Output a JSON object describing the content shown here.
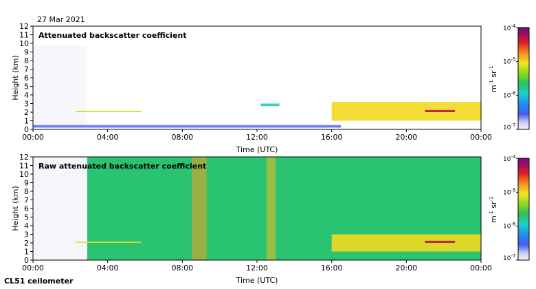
{
  "date_label": "27 Mar 2021",
  "instrument_label": "CL51 ceilometer",
  "panels": [
    {
      "title": "Attenuated backscatter coefficient",
      "colorbar": {
        "unit_m": "m",
        "unit_m_exp": "-1",
        "unit_sr": "sr",
        "unit_sr_exp": "-1",
        "ticks": [
          {
            "base": "10",
            "exp": "-4"
          },
          {
            "base": "10",
            "exp": "-5"
          },
          {
            "base": "10",
            "exp": "-6"
          },
          {
            "base": "10",
            "exp": "-7"
          }
        ]
      }
    },
    {
      "title": "Raw attenuated backscatter coefficient",
      "colorbar": {
        "unit_m": "m",
        "unit_m_exp": "-1",
        "unit_sr": "sr",
        "unit_sr_exp": "-1",
        "ticks": [
          {
            "base": "10",
            "exp": "-4"
          },
          {
            "base": "10",
            "exp": "-5"
          },
          {
            "base": "10",
            "exp": "-6"
          },
          {
            "base": "10",
            "exp": "-7"
          }
        ]
      }
    }
  ],
  "chart_data": [
    {
      "type": "heatmap",
      "title": "Attenuated backscatter coefficient",
      "xlabel": "Time (UTC)",
      "ylabel": "Height (km)",
      "xlim": [
        0,
        24
      ],
      "ylim": [
        0,
        12
      ],
      "x_ticks": [
        0,
        4,
        8,
        12,
        16,
        20,
        24
      ],
      "x_tick_labels": [
        "00:00",
        "04:00",
        "08:00",
        "12:00",
        "16:00",
        "20:00",
        "00:00"
      ],
      "y_ticks": [
        0,
        1,
        2,
        3,
        4,
        5,
        6,
        7,
        8,
        9,
        10,
        11,
        12
      ],
      "y_tick_labels": [
        "0",
        "1",
        "2",
        "3",
        "4",
        "5",
        "6",
        "7",
        "8",
        "9",
        "10",
        "11",
        "12"
      ],
      "colorbar_range": [
        1e-07,
        0.0001
      ],
      "colorbar_scale": "log",
      "features": [
        {
          "kind": "noise",
          "t0": 0.0,
          "t1": 2.9,
          "h0": 0.5,
          "h1": 9.8,
          "log_value": -7.0
        },
        {
          "kind": "layer",
          "t0": 2.3,
          "t1": 5.8,
          "h0": 2.0,
          "h1": 2.15,
          "log_value": -5.2
        },
        {
          "kind": "layer",
          "t0": 0.0,
          "t1": 16.5,
          "h0": 0.2,
          "h1": 0.5,
          "log_value": -6.6
        },
        {
          "kind": "patch",
          "t0": 12.2,
          "t1": 13.2,
          "h0": 2.7,
          "h1": 3.0,
          "log_value": -5.9
        },
        {
          "kind": "cloud",
          "t0": 16.0,
          "t1": 24.0,
          "h0": 1.0,
          "h1": 3.2,
          "log_value": -5.0
        },
        {
          "kind": "layer",
          "t0": 21.0,
          "t1": 22.6,
          "h0": 2.0,
          "h1": 2.25,
          "log_value": -4.3
        }
      ]
    },
    {
      "type": "heatmap",
      "title": "Raw attenuated backscatter coefficient",
      "xlabel": "Time (UTC)",
      "ylabel": "Height (km)",
      "xlim": [
        0,
        24
      ],
      "ylim": [
        0,
        12
      ],
      "x_ticks": [
        0,
        4,
        8,
        12,
        16,
        20,
        24
      ],
      "x_tick_labels": [
        "00:00",
        "04:00",
        "08:00",
        "12:00",
        "16:00",
        "20:00",
        "00:00"
      ],
      "y_ticks": [
        0,
        1,
        2,
        3,
        4,
        5,
        6,
        7,
        8,
        9,
        10,
        11,
        12
      ],
      "y_tick_labels": [
        "0",
        "1",
        "2",
        "3",
        "4",
        "5",
        "6",
        "7",
        "8",
        "9",
        "10",
        "11",
        "12"
      ],
      "colorbar_range": [
        1e-07,
        0.0001
      ],
      "colorbar_scale": "log",
      "features": [
        {
          "kind": "background",
          "t0": 2.9,
          "t1": 24.0,
          "h0": 0.0,
          "h1": 12.0,
          "log_value": -5.7
        },
        {
          "kind": "low_signal",
          "t0": 0.0,
          "t1": 2.9,
          "h0": 0.0,
          "h1": 12.0,
          "log_value": -7.0
        },
        {
          "kind": "layer",
          "t0": 2.3,
          "t1": 5.8,
          "h0": 2.0,
          "h1": 2.15,
          "log_value": -5.0
        },
        {
          "kind": "plume",
          "t0": 8.5,
          "t1": 9.3,
          "h0": 0.0,
          "h1": 12.0,
          "log_value": -4.8
        },
        {
          "kind": "plume",
          "t0": 12.5,
          "t1": 13.0,
          "h0": 0.0,
          "h1": 12.0,
          "log_value": -4.9
        },
        {
          "kind": "cloud",
          "t0": 16.0,
          "t1": 24.0,
          "h0": 1.0,
          "h1": 3.0,
          "log_value": -5.0
        },
        {
          "kind": "layer",
          "t0": 21.0,
          "t1": 22.6,
          "h0": 2.0,
          "h1": 2.25,
          "log_value": -4.3
        }
      ]
    }
  ]
}
